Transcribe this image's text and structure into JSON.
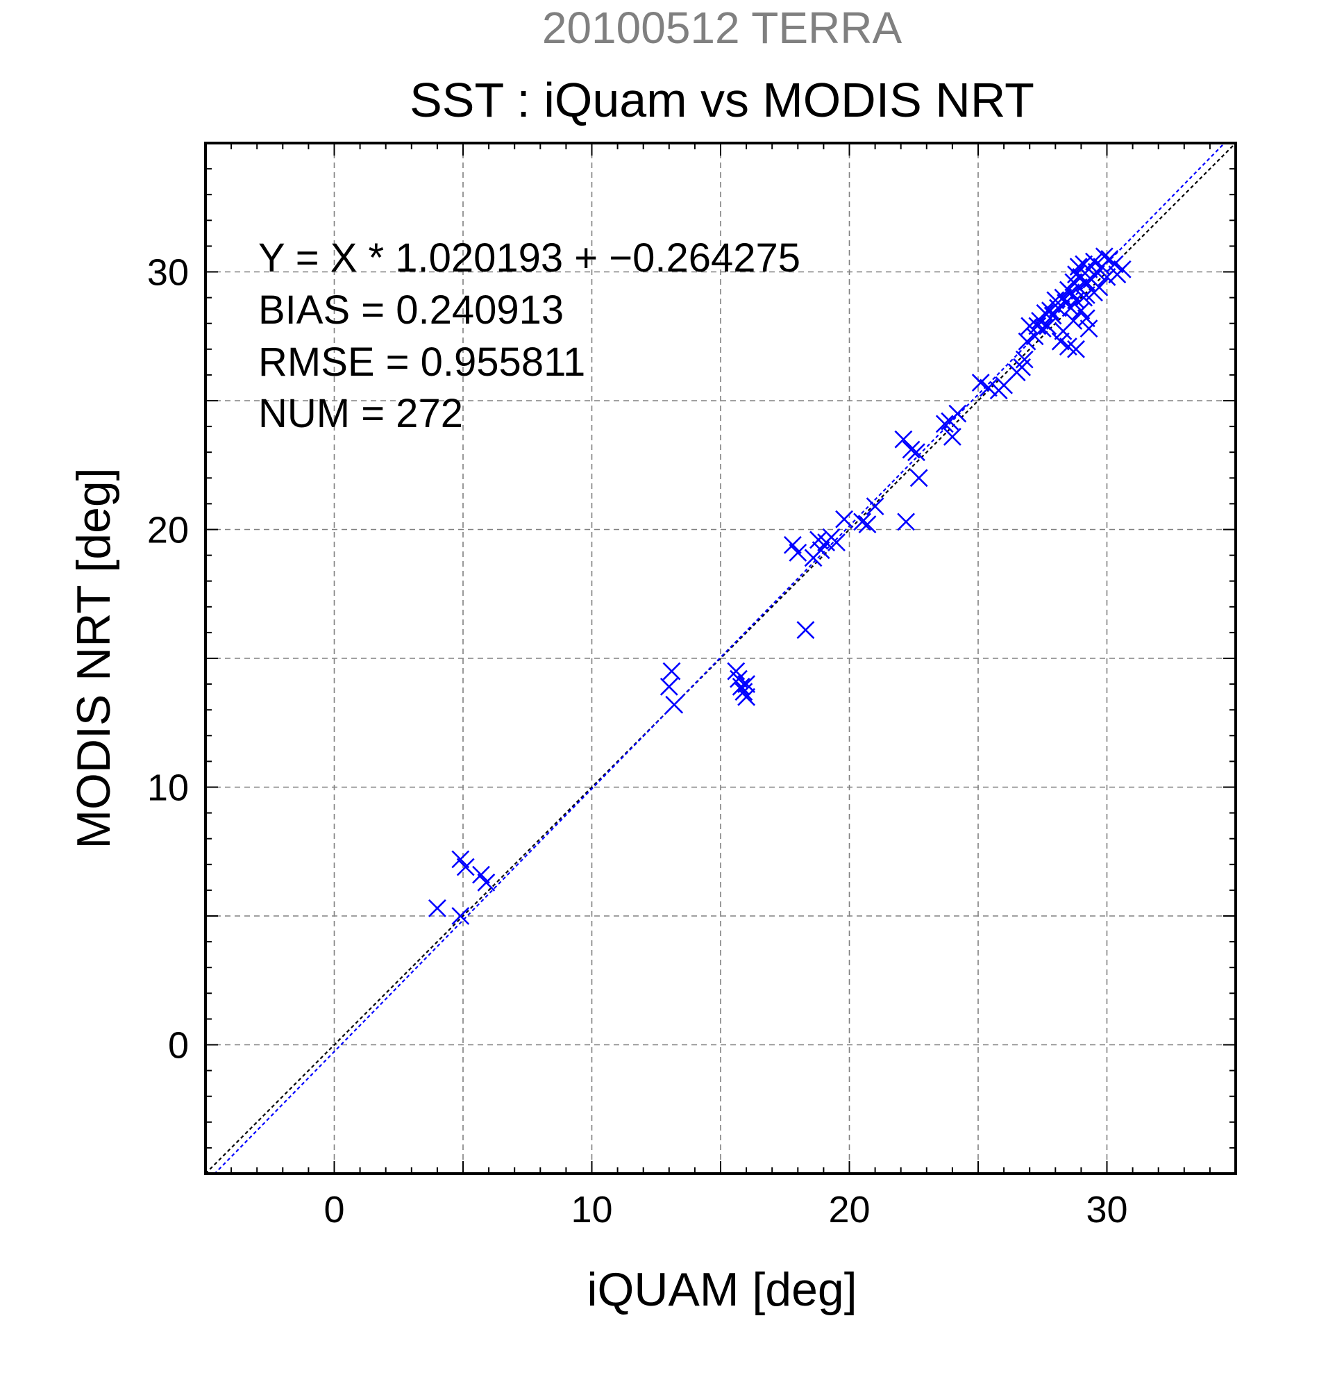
{
  "chart_data": {
    "type": "scatter",
    "supertitle": "20100512 TERRA",
    "title": "SST : iQuam vs MODIS NRT",
    "xlabel": "iQUAM [deg]",
    "ylabel": "MODIS NRT [deg]",
    "xlim": [
      -5,
      35
    ],
    "ylim": [
      -5,
      35
    ],
    "xticks": [
      0,
      10,
      20,
      30
    ],
    "yticks": [
      0,
      10,
      20,
      30
    ],
    "grid": true,
    "stats": [
      "Y = X * 1.020193 + −0.264275",
      "BIAS = 0.240913",
      "RMSE = 0.955811",
      "NUM = 272"
    ],
    "fit": {
      "slope": 1.020193,
      "intercept": -0.264275
    },
    "colors": {
      "points": "#0000ff",
      "fit_line": "#0000ff",
      "identity_line": "#000000",
      "supertitle": "#808080",
      "grid": "#808080"
    },
    "points": [
      [
        4.0,
        5.3
      ],
      [
        4.9,
        5.0
      ],
      [
        4.9,
        7.2
      ],
      [
        5.1,
        6.9
      ],
      [
        5.7,
        6.6
      ],
      [
        5.9,
        6.3
      ],
      [
        13.0,
        13.9
      ],
      [
        13.1,
        14.5
      ],
      [
        13.2,
        13.2
      ],
      [
        15.6,
        14.5
      ],
      [
        15.7,
        14.2
      ],
      [
        15.8,
        13.9
      ],
      [
        15.9,
        13.7
      ],
      [
        16.0,
        14.0
      ],
      [
        16.0,
        13.5
      ],
      [
        17.8,
        19.4
      ],
      [
        18.0,
        19.1
      ],
      [
        18.3,
        16.1
      ],
      [
        18.6,
        18.9
      ],
      [
        18.8,
        19.6
      ],
      [
        18.9,
        19.2
      ],
      [
        19.1,
        19.5
      ],
      [
        19.3,
        19.7
      ],
      [
        19.5,
        19.5
      ],
      [
        19.8,
        20.4
      ],
      [
        20.5,
        20.3
      ],
      [
        20.7,
        20.2
      ],
      [
        21.0,
        20.9
      ],
      [
        22.2,
        20.3
      ],
      [
        22.1,
        23.5
      ],
      [
        22.4,
        23.1
      ],
      [
        22.6,
        23.0
      ],
      [
        22.7,
        22.0
      ],
      [
        23.7,
        24.1
      ],
      [
        23.9,
        24.2
      ],
      [
        24.0,
        23.6
      ],
      [
        24.2,
        24.5
      ],
      [
        25.1,
        25.7
      ],
      [
        25.4,
        25.5
      ],
      [
        25.8,
        25.4
      ],
      [
        26.0,
        25.6
      ],
      [
        26.5,
        26.1
      ],
      [
        26.7,
        26.3
      ],
      [
        26.8,
        26.6
      ],
      [
        26.9,
        27.3
      ],
      [
        27.0,
        27.9
      ],
      [
        27.2,
        27.5
      ],
      [
        27.3,
        27.9
      ],
      [
        27.4,
        28.1
      ],
      [
        27.5,
        27.8
      ],
      [
        27.6,
        28.4
      ],
      [
        27.7,
        27.9
      ],
      [
        27.8,
        28.5
      ],
      [
        27.9,
        28.3
      ],
      [
        28.0,
        28.9
      ],
      [
        28.1,
        28.6
      ],
      [
        28.2,
        27.3
      ],
      [
        28.3,
        29.0
      ],
      [
        28.3,
        27.7
      ],
      [
        28.4,
        28.8
      ],
      [
        28.5,
        29.3
      ],
      [
        28.5,
        27.1
      ],
      [
        28.6,
        28.6
      ],
      [
        28.7,
        29.6
      ],
      [
        28.7,
        28.1
      ],
      [
        28.8,
        29.9
      ],
      [
        28.8,
        28.9
      ],
      [
        28.8,
        27.0
      ],
      [
        28.9,
        30.2
      ],
      [
        28.9,
        29.4
      ],
      [
        29.0,
        28.5
      ],
      [
        29.0,
        29.8
      ],
      [
        29.1,
        30.3
      ],
      [
        29.1,
        29.0
      ],
      [
        29.2,
        28.2
      ],
      [
        29.2,
        29.6
      ],
      [
        29.3,
        30.1
      ],
      [
        29.3,
        27.8
      ],
      [
        29.4,
        29.7
      ],
      [
        29.5,
        30.4
      ],
      [
        29.5,
        29.2
      ],
      [
        29.6,
        30.0
      ],
      [
        29.7,
        29.4
      ],
      [
        29.8,
        30.2
      ],
      [
        29.9,
        30.6
      ],
      [
        30.0,
        29.8
      ],
      [
        30.1,
        30.5
      ],
      [
        30.3,
        30.3
      ],
      [
        30.4,
        29.9
      ],
      [
        30.6,
        30.1
      ],
      [
        29.2,
        29.1
      ],
      [
        28.6,
        29.2
      ]
    ]
  }
}
